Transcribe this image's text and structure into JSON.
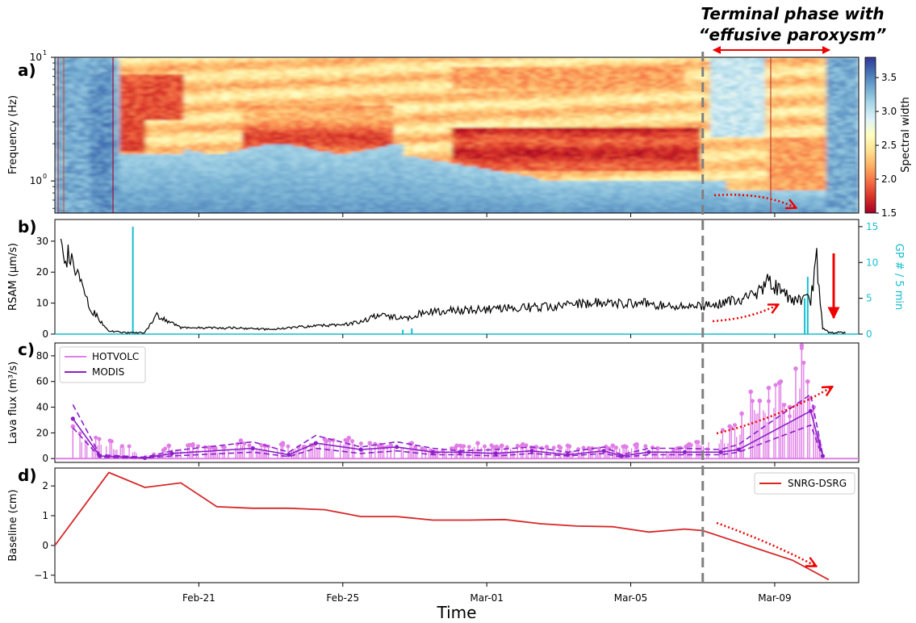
{
  "annotation": {
    "line1": "Terminal phase with",
    "line2": "“effusive paroxysm”",
    "color": "#ee0000",
    "vline_date": "2015-03-07"
  },
  "x_axis": {
    "label": "Time",
    "ticks": [
      "Feb-21",
      "Feb-25",
      "Mar-01",
      "Mar-05",
      "Mar-09"
    ]
  },
  "chart_data": [
    {
      "panel_label": "a)",
      "type": "heatmap",
      "ylabel": "Frequency (Hz)",
      "yscale": "log",
      "ytick_labels": [
        "10^0",
        "10^1"
      ],
      "colorbar": {
        "label": "Spectral width",
        "ticks": [
          "1.5",
          "2.0",
          "2.5",
          "3.0",
          "3.5"
        ],
        "range": [
          1.5,
          3.8
        ],
        "colormap": "RdYlBu"
      }
    },
    {
      "panel_label": "b)",
      "type": "line",
      "ylabel": "RSAM (µm/s)",
      "ylabel_right": "GP # / 5 min",
      "yticks": [
        "0",
        "10",
        "20",
        "30"
      ],
      "yticks_right": [
        "0",
        "5",
        "10",
        "15"
      ],
      "ylim": [
        0,
        37
      ],
      "ylim_right": [
        0,
        16
      ],
      "series": [
        {
          "axis": "left",
          "color": "#000000",
          "x": [
            "2015-02-17T04:00",
            "2015-02-17T12:00",
            "2015-02-18T00:00",
            "2015-02-18T12:00",
            "2015-02-19T00:00",
            "2015-02-19T12:00",
            "2015-02-19T20:00",
            "2015-02-20T12:00",
            "2015-02-21T00:00",
            "2015-02-22T00:00",
            "2015-02-23T00:00",
            "2015-02-24T00:00",
            "2015-02-25T00:00",
            "2015-02-25T12:00",
            "2015-02-26T00:00",
            "2015-02-26T18:00",
            "2015-02-27T06:00",
            "2015-02-28T00:00",
            "2015-03-01T00:00",
            "2015-03-02T00:00",
            "2015-03-03T00:00",
            "2015-03-04T00:00",
            "2015-03-05T00:00",
            "2015-03-06T00:00",
            "2015-03-07T00:00",
            "2015-03-07T12:00",
            "2015-03-08T00:00",
            "2015-03-08T12:00",
            "2015-03-08T20:00",
            "2015-03-09T12:00",
            "2015-03-10T00:00",
            "2015-03-10T04:00",
            "2015-03-10T08:00",
            "2015-03-10T12:00",
            "2015-03-11T00:00"
          ],
          "y": [
            30,
            22,
            8,
            1,
            0.5,
            0.5,
            6,
            2,
            2,
            2,
            1.5,
            2.5,
            3,
            4,
            6,
            5,
            7,
            7.5,
            8,
            8.5,
            9,
            10,
            10,
            9.5,
            9,
            10,
            11,
            13,
            17,
            11,
            11,
            24,
            2,
            0.5,
            0.5
          ]
        },
        {
          "axis": "right",
          "color": "#17becf",
          "x": [
            "2015-02-17T04:00",
            "2015-02-19T04:00",
            "2015-02-26T16:00",
            "2015-02-26T22:00",
            "2015-03-09T20:00",
            "2015-03-09T22:00",
            "2015-03-10T06:00"
          ],
          "y": [
            0,
            15,
            0.6,
            0.8,
            5,
            8,
            0
          ]
        }
      ]
    },
    {
      "panel_label": "c)",
      "type": "line",
      "ylabel": "Lava flux (m³/s)",
      "yticks": [
        "0",
        "20",
        "40",
        "60",
        "80"
      ],
      "ylim": [
        -3,
        90
      ],
      "legend": [
        "HOTVOLC",
        "MODIS"
      ],
      "legend_position": "top-left",
      "series": [
        {
          "name": "HOTVOLC",
          "color": "#e07ee6",
          "x": [
            "2015-02-17T12:00",
            "2015-02-19T18:00",
            "2015-02-20T04:00",
            "2015-02-20T20:00",
            "2015-02-21T10:00",
            "2015-02-22T04:00",
            "2015-02-22T20:00",
            "2015-02-23T08:00",
            "2015-02-23T22:00",
            "2015-02-24T12:00",
            "2015-02-25T04:00",
            "2015-02-25T18:00",
            "2015-02-26T08:00",
            "2015-02-26T22:00",
            "2015-02-27T14:00",
            "2015-02-28T04:00",
            "2015-02-28T18:00",
            "2015-03-01T10:00",
            "2015-03-02T00:00",
            "2015-03-02T16:00",
            "2015-03-03T06:00",
            "2015-03-03T20:00",
            "2015-03-04T12:00",
            "2015-03-05T04:00",
            "2015-03-05T18:00",
            "2015-03-06T08:00",
            "2015-03-07T18:00",
            "2015-03-08T02:00",
            "2015-03-08T08:00",
            "2015-03-08T14:00",
            "2015-03-08T20:00",
            "2015-03-09T04:00",
            "2015-03-09T10:00",
            "2015-03-09T14:00",
            "2015-03-09T18:00",
            "2015-03-09T22:00",
            "2015-03-10T02:00",
            "2015-03-10T06:00"
          ],
          "y": [
            25,
            3,
            10,
            11,
            8,
            14,
            10,
            12,
            9,
            15,
            16,
            12,
            10,
            12,
            5,
            10,
            12,
            10,
            11,
            9,
            10,
            8,
            10,
            11,
            8,
            8,
            25,
            35,
            52,
            45,
            55,
            60,
            40,
            70,
            88,
            60,
            40,
            10
          ]
        },
        {
          "name": "MODIS",
          "color": "#8b1fc9",
          "x": [
            "2015-02-17T12:00",
            "2015-02-18T06:00",
            "2015-02-19T12:00",
            "2015-02-20T06:00",
            "2015-02-22T12:00",
            "2015-02-23T12:00",
            "2015-02-24T06:00",
            "2015-02-25T12:00",
            "2015-02-26T12:00",
            "2015-02-27T12:00",
            "2015-02-28T06:00",
            "2015-03-01T06:00",
            "2015-03-02T06:00",
            "2015-03-03T06:00",
            "2015-03-04T06:00",
            "2015-03-04T18:00",
            "2015-03-05T12:00",
            "2015-03-06T12:00",
            "2015-03-07T12:00",
            "2015-03-08T00:00",
            "2015-03-10T00:00",
            "2015-03-10T08:00"
          ],
          "y": [
            31,
            2,
            0.5,
            4,
            8,
            3,
            12,
            7,
            9,
            5,
            5,
            4,
            6,
            3,
            6,
            2,
            5,
            5,
            5,
            7,
            37,
            2
          ],
          "upper": [
            42,
            3,
            1,
            6,
            13,
            5,
            18,
            9,
            13,
            8,
            6,
            7,
            9,
            5,
            9,
            3,
            8,
            8,
            7,
            11,
            50,
            3
          ],
          "lower": [
            24,
            1,
            0.3,
            2,
            5,
            1.5,
            8,
            4,
            6,
            3,
            3,
            2,
            4,
            2,
            4,
            1,
            3,
            3,
            3,
            5,
            26,
            1
          ]
        }
      ]
    },
    {
      "panel_label": "d)",
      "type": "line",
      "ylabel": "Baseline (cm)",
      "yticks": [
        "−1",
        "0",
        "1",
        "2"
      ],
      "ylim": [
        -1.25,
        2.6
      ],
      "legend": [
        "SNRG-DSRG"
      ],
      "legend_position": "top-right",
      "series": [
        {
          "name": "SNRG-DSRG",
          "color": "#d62728",
          "x": [
            "2015-02-17",
            "2015-02-18T12:00",
            "2015-02-19T12:00",
            "2015-02-20T12:00",
            "2015-02-21T12:00",
            "2015-02-22T12:00",
            "2015-02-23T12:00",
            "2015-02-24T12:00",
            "2015-02-25T12:00",
            "2015-02-26T12:00",
            "2015-02-27T12:00",
            "2015-02-28T12:00",
            "2015-03-01T12:00",
            "2015-03-02T12:00",
            "2015-03-03T12:00",
            "2015-03-04T12:00",
            "2015-03-05T12:00",
            "2015-03-06T12:00",
            "2015-03-07T00:00",
            "2015-03-07T12:00",
            "2015-03-08T12:00",
            "2015-03-09T12:00",
            "2015-03-10T12:00"
          ],
          "y": [
            0,
            2.45,
            1.95,
            2.1,
            1.3,
            1.25,
            1.25,
            1.2,
            0.97,
            0.97,
            0.85,
            0.85,
            0.87,
            0.73,
            0.65,
            0.63,
            0.45,
            0.55,
            0.5,
            0.3,
            -0.1,
            -0.5,
            -1.15
          ]
        }
      ]
    }
  ]
}
